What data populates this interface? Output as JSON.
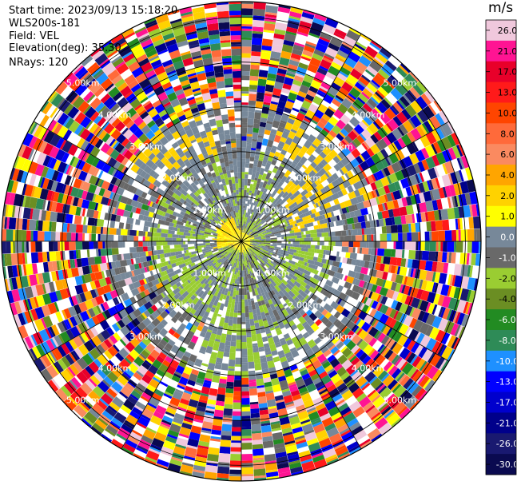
{
  "header": {
    "start_time": "Start time: 2023/09/13 15:18:20",
    "instrument": "WLS200s-181",
    "field": "Field: VEL",
    "elevation": "Elevation(deg): 35.30",
    "nrays": "NRays: 120"
  },
  "chart_data": {
    "type": "heatmap",
    "projection": "polar-ppi",
    "field": "VEL",
    "units": "m/s",
    "ring_labels": [
      "1.00km",
      "2.00km",
      "3.00km",
      "4.00km",
      "5.00km"
    ],
    "ring_distances_km": [
      1,
      2,
      3,
      4,
      5
    ],
    "max_range_km": 5.35,
    "nrays": 120,
    "colorbar": {
      "label": "m/s",
      "bins": [
        {
          "value": "26.0",
          "color": "#f0c8dc"
        },
        {
          "value": "21.0",
          "color": "#ff1493"
        },
        {
          "value": "17.0",
          "color": "#e8002a"
        },
        {
          "value": "13.0",
          "color": "#ff1a1a"
        },
        {
          "value": "10.0",
          "color": "#ff4500"
        },
        {
          "value": "8.0",
          "color": "#ff6a3a"
        },
        {
          "value": "6.0",
          "color": "#fa8a60"
        },
        {
          "value": "4.0",
          "color": "#ffa500"
        },
        {
          "value": "2.0",
          "color": "#ffd200"
        },
        {
          "value": "1.0",
          "color": "#ffff00"
        },
        {
          "value": "0.0",
          "color": "#778899"
        },
        {
          "value": "-1.0",
          "color": "#696969"
        },
        {
          "value": "-2.0",
          "color": "#9acd32"
        },
        {
          "value": "-4.0",
          "color": "#6b8e23"
        },
        {
          "value": "-6.0",
          "color": "#228b22"
        },
        {
          "value": "-8.0",
          "color": "#2e8b57"
        },
        {
          "value": "-10.0",
          "color": "#1e90ff"
        },
        {
          "value": "-13.0",
          "color": "#0000ff"
        },
        {
          "value": "-17.0",
          "color": "#0000cd"
        },
        {
          "value": "-21.0",
          "color": "#00008b"
        },
        {
          "value": "-26.0",
          "color": "#191970"
        },
        {
          "value": "-30.0",
          "color": "#0a0a50"
        }
      ]
    },
    "regimes": [
      {
        "range_km": [
          0,
          0.15
        ],
        "velocity": "1.0 to 2.0",
        "color": "#ffd200"
      },
      {
        "range_km": [
          0.15,
          2.0
        ],
        "velocity": "-2.0 to 1.0",
        "color": "#778899"
      },
      {
        "range_km": [
          2.0,
          3.0
        ],
        "velocity": "mixed, mostly 0.0 to -2.0",
        "color": "#696969"
      },
      {
        "range_km": [
          3.0,
          5.35
        ],
        "velocity": "noise, full range -30.0 to 26.0",
        "color": "mixed"
      }
    ]
  }
}
